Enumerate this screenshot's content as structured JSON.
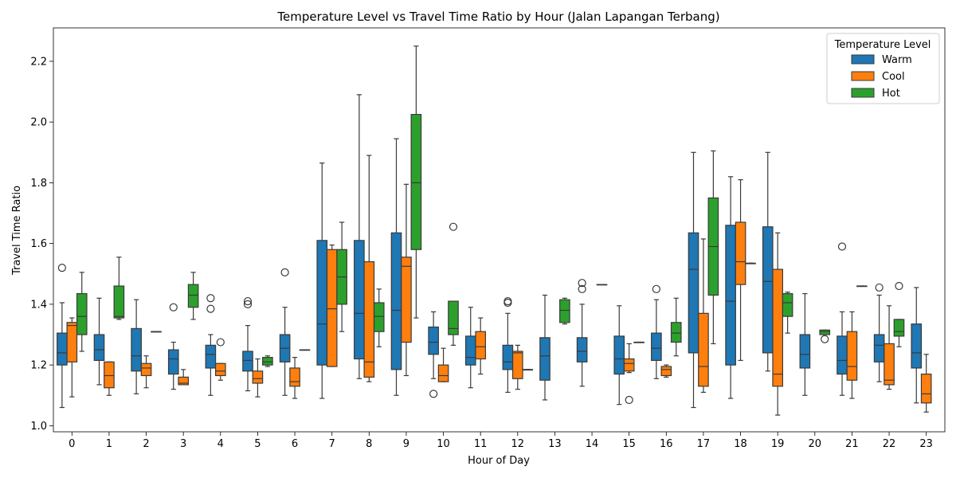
{
  "chart_data": {
    "type": "box",
    "title": "Temperature Level vs Travel Time Ratio by Hour (Jalan Lapangan Terbang)",
    "xlabel": "Hour of Day",
    "ylabel": "Travel Time Ratio",
    "ylim": [
      0.98,
      2.31
    ],
    "yticks": [
      "1.0",
      "1.2",
      "1.4",
      "1.6",
      "1.8",
      "2.0",
      "2.2"
    ],
    "categories": [
      "0",
      "1",
      "2",
      "3",
      "4",
      "5",
      "6",
      "7",
      "8",
      "9",
      "10",
      "11",
      "12",
      "13",
      "14",
      "15",
      "16",
      "17",
      "18",
      "19",
      "20",
      "21",
      "22",
      "23"
    ],
    "legend": {
      "title": "Temperature Level",
      "placement": "top-right"
    },
    "series": [
      {
        "name": "Warm",
        "color": "#1f77b4",
        "boxes": [
          {
            "x": "0",
            "whislo": 1.06,
            "q1": 1.2,
            "med": 1.24,
            "q3": 1.305,
            "whishi": 1.405,
            "fliers": [
              1.52
            ]
          },
          {
            "x": "1",
            "whislo": 1.135,
            "q1": 1.215,
            "med": 1.25,
            "q3": 1.3,
            "whishi": 1.42,
            "fliers": []
          },
          {
            "x": "2",
            "whislo": 1.105,
            "q1": 1.18,
            "med": 1.23,
            "q3": 1.32,
            "whishi": 1.415,
            "fliers": []
          },
          {
            "x": "3",
            "whislo": 1.12,
            "q1": 1.17,
            "med": 1.22,
            "q3": 1.25,
            "whishi": 1.275,
            "fliers": [
              1.39
            ]
          },
          {
            "x": "4",
            "whislo": 1.1,
            "q1": 1.19,
            "med": 1.235,
            "q3": 1.265,
            "whishi": 1.3,
            "fliers": [
              1.385,
              1.42
            ]
          },
          {
            "x": "5",
            "whislo": 1.115,
            "q1": 1.18,
            "med": 1.215,
            "q3": 1.245,
            "whishi": 1.33,
            "fliers": [
              1.4,
              1.41
            ]
          },
          {
            "x": "6",
            "whislo": 1.1,
            "q1": 1.21,
            "med": 1.255,
            "q3": 1.3,
            "whishi": 1.39,
            "fliers": [
              1.505
            ]
          },
          {
            "x": "7",
            "whislo": 1.09,
            "q1": 1.2,
            "med": 1.335,
            "q3": 1.61,
            "whishi": 1.865,
            "fliers": []
          },
          {
            "x": "8",
            "whislo": 1.155,
            "q1": 1.22,
            "med": 1.37,
            "q3": 1.61,
            "whishi": 2.09,
            "fliers": []
          },
          {
            "x": "9",
            "whislo": 1.1,
            "q1": 1.185,
            "med": 1.38,
            "q3": 1.635,
            "whishi": 1.945,
            "fliers": []
          },
          {
            "x": "10",
            "whislo": 1.155,
            "q1": 1.235,
            "med": 1.275,
            "q3": 1.325,
            "whishi": 1.375,
            "fliers": [
              1.105
            ]
          },
          {
            "x": "11",
            "whislo": 1.125,
            "q1": 1.2,
            "med": 1.225,
            "q3": 1.295,
            "whishi": 1.39,
            "fliers": []
          },
          {
            "x": "12",
            "whislo": 1.11,
            "q1": 1.185,
            "med": 1.21,
            "q3": 1.265,
            "whishi": 1.37,
            "fliers": [
              1.405,
              1.41
            ]
          },
          {
            "x": "13",
            "whislo": 1.085,
            "q1": 1.15,
            "med": 1.23,
            "q3": 1.29,
            "whishi": 1.43,
            "fliers": []
          },
          {
            "x": "14",
            "whislo": 1.13,
            "q1": 1.21,
            "med": 1.245,
            "q3": 1.29,
            "whishi": 1.4,
            "fliers": [
              1.45,
              1.47
            ]
          },
          {
            "x": "15",
            "whislo": 1.07,
            "q1": 1.17,
            "med": 1.22,
            "q3": 1.295,
            "whishi": 1.395,
            "fliers": []
          },
          {
            "x": "16",
            "whislo": 1.155,
            "q1": 1.215,
            "med": 1.255,
            "q3": 1.305,
            "whishi": 1.415,
            "fliers": [
              1.45
            ]
          },
          {
            "x": "17",
            "whislo": 1.06,
            "q1": 1.24,
            "med": 1.515,
            "q3": 1.635,
            "whishi": 1.9,
            "fliers": []
          },
          {
            "x": "18",
            "whislo": 1.09,
            "q1": 1.2,
            "med": 1.41,
            "q3": 1.66,
            "whishi": 1.82,
            "fliers": []
          },
          {
            "x": "19",
            "whislo": 1.18,
            "q1": 1.24,
            "med": 1.475,
            "q3": 1.655,
            "whishi": 1.9,
            "fliers": []
          },
          {
            "x": "20",
            "whislo": 1.1,
            "q1": 1.19,
            "med": 1.235,
            "q3": 1.3,
            "whishi": 1.435,
            "fliers": []
          },
          {
            "x": "21",
            "whislo": 1.1,
            "q1": 1.17,
            "med": 1.215,
            "q3": 1.295,
            "whishi": 1.375,
            "fliers": [
              1.59
            ]
          },
          {
            "x": "22",
            "whislo": 1.145,
            "q1": 1.21,
            "med": 1.265,
            "q3": 1.3,
            "whishi": 1.43,
            "fliers": [
              1.455
            ]
          },
          {
            "x": "23",
            "whislo": 1.075,
            "q1": 1.19,
            "med": 1.24,
            "q3": 1.335,
            "whishi": 1.455,
            "fliers": []
          }
        ]
      },
      {
        "name": "Cool",
        "color": "#ff7f0e",
        "boxes": [
          {
            "x": "0",
            "whislo": 1.095,
            "q1": 1.21,
            "med": 1.33,
            "q3": 1.34,
            "whishi": 1.355,
            "fliers": []
          },
          {
            "x": "1",
            "whislo": 1.1,
            "q1": 1.125,
            "med": 1.165,
            "q3": 1.21,
            "whishi": 1.21,
            "fliers": []
          },
          {
            "x": "2",
            "whislo": 1.125,
            "q1": 1.165,
            "med": 1.19,
            "q3": 1.205,
            "whishi": 1.23,
            "fliers": []
          },
          {
            "x": "3",
            "whislo": 1.135,
            "q1": 1.135,
            "med": 1.14,
            "q3": 1.16,
            "whishi": 1.185,
            "fliers": []
          },
          {
            "x": "4",
            "whislo": 1.15,
            "q1": 1.165,
            "med": 1.18,
            "q3": 1.205,
            "whishi": 1.205,
            "fliers": [
              1.275
            ]
          },
          {
            "x": "5",
            "whislo": 1.095,
            "q1": 1.14,
            "med": 1.155,
            "q3": 1.18,
            "whishi": 1.22,
            "fliers": []
          },
          {
            "x": "6",
            "whislo": 1.09,
            "q1": 1.13,
            "med": 1.145,
            "q3": 1.19,
            "whishi": 1.225,
            "fliers": []
          },
          {
            "x": "7",
            "whislo": 1.195,
            "q1": 1.195,
            "med": 1.385,
            "q3": 1.58,
            "whishi": 1.595,
            "fliers": []
          },
          {
            "x": "8",
            "whislo": 1.145,
            "q1": 1.16,
            "med": 1.21,
            "q3": 1.54,
            "whishi": 1.89,
            "fliers": []
          },
          {
            "x": "9",
            "whislo": 1.165,
            "q1": 1.275,
            "med": 1.525,
            "q3": 1.555,
            "whishi": 1.795,
            "fliers": []
          },
          {
            "x": "10",
            "whislo": 1.145,
            "q1": 1.145,
            "med": 1.165,
            "q3": 1.2,
            "whishi": 1.255,
            "fliers": []
          },
          {
            "x": "11",
            "whislo": 1.17,
            "q1": 1.22,
            "med": 1.26,
            "q3": 1.31,
            "whishi": 1.355,
            "fliers": []
          },
          {
            "x": "12",
            "whislo": 1.12,
            "q1": 1.155,
            "med": 1.24,
            "q3": 1.245,
            "whishi": 1.265,
            "fliers": []
          },
          {
            "x": "15",
            "whislo": 1.175,
            "q1": 1.18,
            "med": 1.205,
            "q3": 1.22,
            "whishi": 1.27,
            "fliers": [
              1.085
            ]
          },
          {
            "x": "16",
            "whislo": 1.16,
            "q1": 1.165,
            "med": 1.185,
            "q3": 1.195,
            "whishi": 1.2,
            "fliers": []
          },
          {
            "x": "17",
            "whislo": 1.11,
            "q1": 1.13,
            "med": 1.195,
            "q3": 1.37,
            "whishi": 1.615,
            "fliers": []
          },
          {
            "x": "18",
            "whislo": 1.215,
            "q1": 1.465,
            "med": 1.54,
            "q3": 1.67,
            "whishi": 1.81,
            "fliers": []
          },
          {
            "x": "19",
            "whislo": 1.035,
            "q1": 1.13,
            "med": 1.17,
            "q3": 1.515,
            "whishi": 1.635,
            "fliers": []
          },
          {
            "x": "21",
            "whislo": 1.09,
            "q1": 1.15,
            "med": 1.195,
            "q3": 1.31,
            "whishi": 1.375,
            "fliers": []
          },
          {
            "x": "22",
            "whislo": 1.12,
            "q1": 1.135,
            "med": 1.15,
            "q3": 1.27,
            "whishi": 1.395,
            "fliers": []
          },
          {
            "x": "23",
            "whislo": 1.045,
            "q1": 1.075,
            "med": 1.105,
            "q3": 1.17,
            "whishi": 1.235,
            "fliers": []
          }
        ]
      },
      {
        "name": "Hot",
        "color": "#2ca02c",
        "boxes": [
          {
            "x": "0",
            "whislo": 1.245,
            "q1": 1.3,
            "med": 1.36,
            "q3": 1.435,
            "whishi": 1.505,
            "fliers": []
          },
          {
            "x": "1",
            "whislo": 1.35,
            "q1": 1.355,
            "med": 1.36,
            "q3": 1.46,
            "whishi": 1.555,
            "fliers": []
          },
          {
            "x": "2",
            "whislo": 1.31,
            "q1": 1.31,
            "med": 1.31,
            "q3": 1.31,
            "whishi": 1.31,
            "fliers": []
          },
          {
            "x": "3",
            "whislo": 1.35,
            "q1": 1.39,
            "med": 1.43,
            "q3": 1.465,
            "whishi": 1.505,
            "fliers": []
          },
          {
            "x": "5",
            "whislo": 1.195,
            "q1": 1.2,
            "med": 1.21,
            "q3": 1.225,
            "whishi": 1.23,
            "fliers": []
          },
          {
            "x": "6",
            "whislo": 1.25,
            "q1": 1.25,
            "med": 1.25,
            "q3": 1.25,
            "whishi": 1.25,
            "fliers": []
          },
          {
            "x": "7",
            "whislo": 1.31,
            "q1": 1.4,
            "med": 1.49,
            "q3": 1.58,
            "whishi": 1.67,
            "fliers": []
          },
          {
            "x": "8",
            "whislo": 1.26,
            "q1": 1.31,
            "med": 1.36,
            "q3": 1.405,
            "whishi": 1.45,
            "fliers": []
          },
          {
            "x": "9",
            "whislo": 1.355,
            "q1": 1.58,
            "med": 1.8,
            "q3": 2.025,
            "whishi": 2.25,
            "fliers": []
          },
          {
            "x": "10",
            "whislo": 1.265,
            "q1": 1.3,
            "med": 1.32,
            "q3": 1.41,
            "whishi": 1.41,
            "fliers": [
              1.655
            ]
          },
          {
            "x": "12",
            "whislo": 1.185,
            "q1": 1.185,
            "med": 1.185,
            "q3": 1.185,
            "whishi": 1.185,
            "fliers": []
          },
          {
            "x": "13",
            "whislo": 1.335,
            "q1": 1.34,
            "med": 1.38,
            "q3": 1.415,
            "whishi": 1.42,
            "fliers": []
          },
          {
            "x": "14",
            "whislo": 1.465,
            "q1": 1.465,
            "med": 1.465,
            "q3": 1.465,
            "whishi": 1.465,
            "fliers": []
          },
          {
            "x": "15",
            "whislo": 1.275,
            "q1": 1.275,
            "med": 1.275,
            "q3": 1.275,
            "whishi": 1.275,
            "fliers": []
          },
          {
            "x": "16",
            "whislo": 1.23,
            "q1": 1.275,
            "med": 1.305,
            "q3": 1.34,
            "whishi": 1.42,
            "fliers": []
          },
          {
            "x": "17",
            "whislo": 1.27,
            "q1": 1.43,
            "med": 1.59,
            "q3": 1.75,
            "whishi": 1.905,
            "fliers": []
          },
          {
            "x": "18",
            "whislo": 1.535,
            "q1": 1.535,
            "med": 1.535,
            "q3": 1.535,
            "whishi": 1.535,
            "fliers": []
          },
          {
            "x": "19",
            "whislo": 1.305,
            "q1": 1.36,
            "med": 1.405,
            "q3": 1.435,
            "whishi": 1.44,
            "fliers": []
          },
          {
            "x": "20",
            "whislo": 1.3,
            "q1": 1.3,
            "med": 1.31,
            "q3": 1.315,
            "whishi": 1.315,
            "fliers": [
              1.285
            ]
          },
          {
            "x": "21",
            "whislo": 1.46,
            "q1": 1.46,
            "med": 1.46,
            "q3": 1.46,
            "whishi": 1.46,
            "fliers": []
          },
          {
            "x": "22",
            "whislo": 1.26,
            "q1": 1.295,
            "med": 1.31,
            "q3": 1.35,
            "whishi": 1.35,
            "fliers": [
              1.46
            ]
          }
        ]
      }
    ]
  }
}
